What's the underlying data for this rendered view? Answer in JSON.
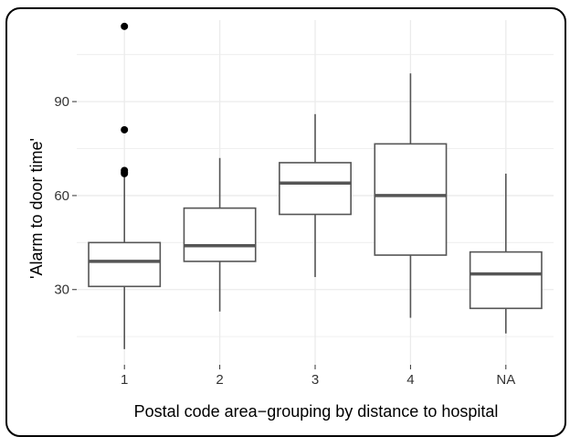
{
  "chart_data": {
    "type": "boxplot",
    "xlabel": "Postal code area−grouping by distance to hospital",
    "ylabel": "'Alarm to door time'",
    "ylim": [
      6,
      116
    ],
    "yticks": [
      30,
      60,
      90
    ],
    "grid": true,
    "categories": [
      "1",
      "2",
      "3",
      "4",
      "NA"
    ],
    "boxes": [
      {
        "category": "1",
        "whisker_low": 11,
        "q1": 31,
        "median": 39,
        "q3": 45,
        "whisker_high": 66,
        "outliers": [
          114,
          81,
          68,
          67.5,
          67
        ]
      },
      {
        "category": "2",
        "whisker_low": 23,
        "q1": 39,
        "median": 44,
        "q3": 56,
        "whisker_high": 72,
        "outliers": []
      },
      {
        "category": "3",
        "whisker_low": 34,
        "q1": 54,
        "median": 64,
        "q3": 70.5,
        "whisker_high": 86,
        "outliers": []
      },
      {
        "category": "4",
        "whisker_low": 21,
        "q1": 41,
        "median": 60,
        "q3": 76.5,
        "whisker_high": 99,
        "outliers": []
      },
      {
        "category": "NA",
        "whisker_low": 16,
        "q1": 24,
        "median": 35,
        "q3": 42,
        "whisker_high": 67,
        "outliers": []
      }
    ],
    "colors": {
      "box_line": "#555555",
      "median": "#555555",
      "grid": "#ebebeb",
      "outlier": "#000000"
    }
  }
}
